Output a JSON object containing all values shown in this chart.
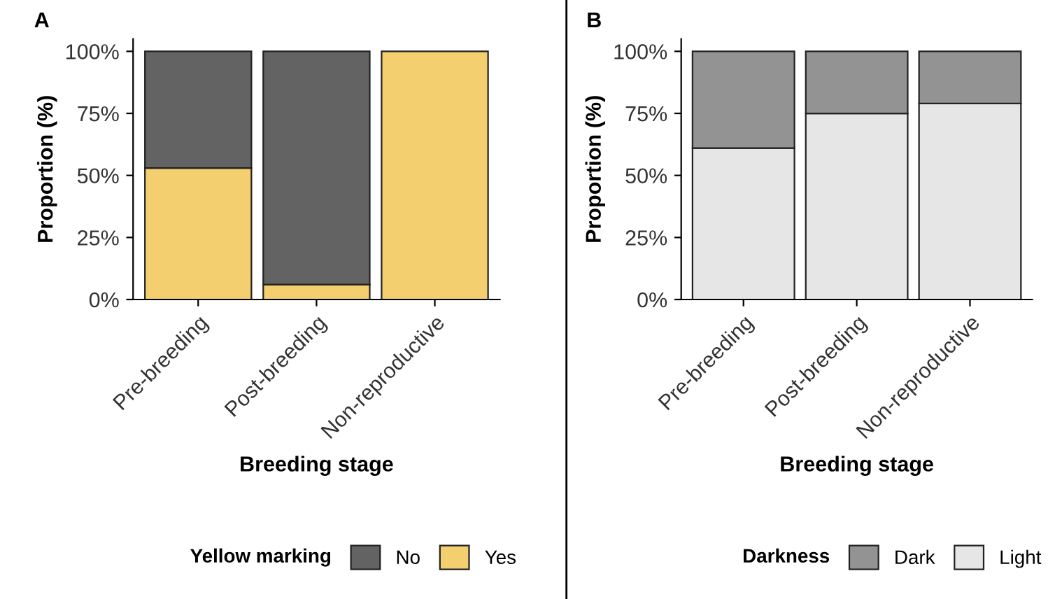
{
  "chart_data": [
    {
      "type": "bar",
      "title": "A",
      "stacked": true,
      "categories": [
        "Pre-breeding",
        "Post-breeding",
        "Non-reproductive"
      ],
      "xlabel": "Breeding stage",
      "ylabel": "Proportion (%)",
      "legend_title": "Yellow marking",
      "legend": "bottom",
      "grid": false,
      "ylim": [
        0,
        105
      ],
      "yticks": [
        {
          "value": 0,
          "label": "0%"
        },
        {
          "value": 25,
          "label": "25%"
        },
        {
          "value": 50,
          "label": "50%"
        },
        {
          "value": 75,
          "label": "75%"
        },
        {
          "value": 100,
          "label": "100%"
        }
      ],
      "series": [
        {
          "name": "Yes",
          "color": "#f4cf6f",
          "values": [
            53,
            6,
            100
          ]
        },
        {
          "name": "No",
          "color": "#636363",
          "values": [
            47,
            94,
            0
          ]
        }
      ]
    },
    {
      "type": "bar",
      "title": "B",
      "stacked": true,
      "categories": [
        "Pre-breeding",
        "Post-breeding",
        "Non-reproductive"
      ],
      "xlabel": "Breeding stage",
      "ylabel": "Proportion (%)",
      "legend_title": "Darkness",
      "legend": "bottom",
      "grid": false,
      "ylim": [
        0,
        105
      ],
      "yticks": [
        {
          "value": 0,
          "label": "0%"
        },
        {
          "value": 25,
          "label": "25%"
        },
        {
          "value": 50,
          "label": "50%"
        },
        {
          "value": 75,
          "label": "75%"
        },
        {
          "value": 100,
          "label": "100%"
        }
      ],
      "series": [
        {
          "name": "Light",
          "color": "#e6e6e6",
          "values": [
            61,
            75,
            79
          ]
        },
        {
          "name": "Dark",
          "color": "#939393",
          "values": [
            39,
            25,
            21
          ]
        }
      ]
    }
  ]
}
